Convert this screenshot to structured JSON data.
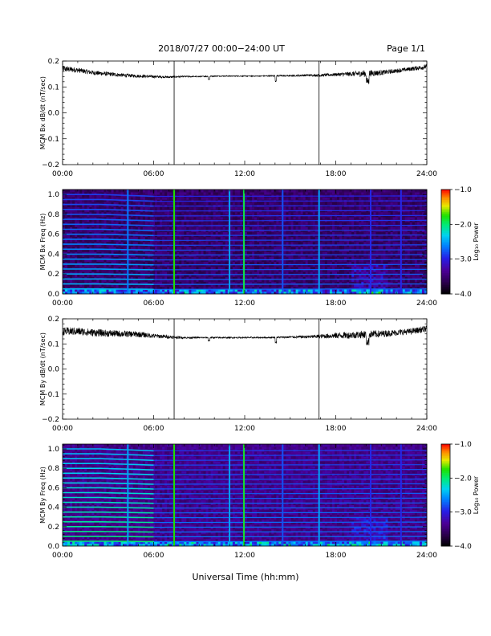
{
  "header": {
    "title": "2018/07/27  00:00−24:00 UT",
    "page": "Page 1/1"
  },
  "x_axis_title": "Universal Time (hh:mm)",
  "chart_data": [
    {
      "type": "line",
      "ylabel": "MCM Bx dB/dt (nT/sec)",
      "xlim": [
        0,
        24
      ],
      "ylim": [
        -0.2,
        0.2
      ],
      "x_ticks": [
        0,
        6,
        12,
        18,
        24
      ],
      "x_tick_labels": [
        "00:00",
        "06:00",
        "12:00",
        "18:00",
        "24:00"
      ],
      "y_ticks": [
        -0.2,
        -0.1,
        0.0,
        0.1,
        0.2
      ],
      "y_tick_labels": [
        "−0.2",
        "−0.1",
        "0.0",
        "0.1",
        "0.2"
      ],
      "series": [
        {
          "x": [
            0,
            1,
            2,
            3,
            4,
            5,
            6,
            7,
            8,
            9,
            10,
            11,
            12,
            13,
            14,
            15,
            16,
            17,
            18,
            19,
            20,
            21,
            22,
            23,
            24
          ],
          "y": [
            0.17,
            0.165,
            0.155,
            0.15,
            0.145,
            0.142,
            0.14,
            0.138,
            0.14,
            0.14,
            0.142,
            0.142,
            0.142,
            0.142,
            0.143,
            0.143,
            0.145,
            0.145,
            0.148,
            0.15,
            0.152,
            0.155,
            0.162,
            0.17,
            0.178
          ],
          "noise": [
            0.012,
            0.01,
            0.009,
            0.008,
            0.007,
            0.006,
            0.005,
            0.004,
            0.003,
            0.002,
            0.002,
            0.002,
            0.002,
            0.002,
            0.003,
            0.003,
            0.004,
            0.005,
            0.006,
            0.009,
            0.014,
            0.01,
            0.008,
            0.008,
            0.01
          ],
          "color": "#000000"
        }
      ],
      "spikes_x": [
        7.35,
        16.9
      ]
    },
    {
      "type": "heatmap",
      "ylabel": "MCM Bx Freq (Hz)",
      "xlim": [
        0,
        24
      ],
      "ylim": [
        0,
        1.05
      ],
      "x_ticks": [
        0,
        6,
        12,
        18,
        24
      ],
      "x_tick_labels": [
        "00:00",
        "06:00",
        "12:00",
        "18:00",
        "24:00"
      ],
      "y_ticks": [
        0.0,
        0.2,
        0.4,
        0.6,
        0.8,
        1.0
      ],
      "y_tick_labels": [
        "0.0",
        "0.2",
        "0.4",
        "0.6",
        "0.8",
        "1.0"
      ],
      "colorbar": {
        "label": "Log₁₀ Power",
        "range": [
          -4.0,
          -1.0
        ],
        "ticks": [
          -1.0,
          -2.0,
          -3.0,
          -4.0
        ],
        "tick_labels": [
          "−1.0",
          "−2.0",
          "−3.0",
          "−4.0"
        ]
      },
      "harmonic_lines_hz": [
        0.05,
        0.1,
        0.15,
        0.2,
        0.25,
        0.3,
        0.35,
        0.4,
        0.45,
        0.5,
        0.55,
        0.6,
        0.65,
        0.7,
        0.75,
        0.8,
        0.85,
        0.9,
        0.95,
        1.0
      ],
      "harmonic_strength": 0.38,
      "harmonic_falloff": 0.6,
      "vertical_events": [
        {
          "t": 4.3,
          "level": 0.45
        },
        {
          "t": 7.35,
          "level": 0.75
        },
        {
          "t": 11.0,
          "level": 0.5
        },
        {
          "t": 11.95,
          "level": 0.7
        },
        {
          "t": 14.5,
          "level": 0.4
        },
        {
          "t": 16.9,
          "level": 0.5
        },
        {
          "t": 20.3,
          "level": 0.35
        },
        {
          "t": 22.3,
          "level": 0.35
        }
      ],
      "background_level": 0.1
    },
    {
      "type": "line",
      "ylabel": "MCM By dB/dt (nT/sec)",
      "xlim": [
        0,
        24
      ],
      "ylim": [
        -0.2,
        0.2
      ],
      "x_ticks": [
        0,
        6,
        12,
        18,
        24
      ],
      "x_tick_labels": [
        "00:00",
        "06:00",
        "12:00",
        "18:00",
        "24:00"
      ],
      "y_ticks": [
        -0.2,
        -0.1,
        0.0,
        0.1,
        0.2
      ],
      "y_tick_labels": [
        "−0.2",
        "−0.1",
        "0.0",
        "0.1",
        "0.2"
      ],
      "series": [
        {
          "x": [
            0,
            1,
            2,
            3,
            4,
            5,
            6,
            7,
            8,
            9,
            10,
            11,
            12,
            13,
            14,
            15,
            16,
            17,
            18,
            19,
            20,
            21,
            22,
            23,
            24
          ],
          "y": [
            0.15,
            0.15,
            0.145,
            0.142,
            0.14,
            0.138,
            0.132,
            0.128,
            0.125,
            0.125,
            0.125,
            0.125,
            0.125,
            0.125,
            0.126,
            0.127,
            0.128,
            0.13,
            0.133,
            0.135,
            0.138,
            0.14,
            0.145,
            0.15,
            0.16
          ],
          "noise": [
            0.016,
            0.016,
            0.015,
            0.014,
            0.013,
            0.012,
            0.009,
            0.007,
            0.004,
            0.003,
            0.003,
            0.003,
            0.003,
            0.003,
            0.003,
            0.004,
            0.006,
            0.008,
            0.012,
            0.014,
            0.016,
            0.014,
            0.012,
            0.012,
            0.013
          ],
          "color": "#000000"
        }
      ],
      "spikes_x": [
        7.35,
        16.9
      ]
    },
    {
      "type": "heatmap",
      "ylabel": "MCM By Freq (Hz)",
      "xlim": [
        0,
        24
      ],
      "ylim": [
        0,
        1.05
      ],
      "x_ticks": [
        0,
        6,
        12,
        18,
        24
      ],
      "x_tick_labels": [
        "00:00",
        "06:00",
        "12:00",
        "18:00",
        "24:00"
      ],
      "y_ticks": [
        0.0,
        0.2,
        0.4,
        0.6,
        0.8,
        1.0
      ],
      "y_tick_labels": [
        "0.0",
        "0.2",
        "0.4",
        "0.6",
        "0.8",
        "1.0"
      ],
      "colorbar": {
        "label": "Log₁₀ Power",
        "range": [
          -4.0,
          -1.0
        ],
        "ticks": [
          -1.0,
          -2.0,
          -3.0,
          -4.0
        ],
        "tick_labels": [
          "−1.0",
          "−2.0",
          "−3.0",
          "−4.0"
        ]
      },
      "harmonic_lines_hz": [
        0.05,
        0.1,
        0.15,
        0.2,
        0.25,
        0.3,
        0.35,
        0.4,
        0.45,
        0.5,
        0.55,
        0.6,
        0.65,
        0.7,
        0.75,
        0.8,
        0.85,
        0.9,
        0.95,
        1.0
      ],
      "harmonic_strength": 0.52,
      "harmonic_falloff": 0.5,
      "vertical_events": [
        {
          "t": 4.3,
          "level": 0.5
        },
        {
          "t": 7.35,
          "level": 0.75
        },
        {
          "t": 11.0,
          "level": 0.5
        },
        {
          "t": 11.95,
          "level": 0.72
        },
        {
          "t": 14.5,
          "level": 0.4
        },
        {
          "t": 16.9,
          "level": 0.5
        },
        {
          "t": 20.3,
          "level": 0.35
        },
        {
          "t": 22.3,
          "level": 0.35
        }
      ],
      "background_level": 0.15
    }
  ]
}
